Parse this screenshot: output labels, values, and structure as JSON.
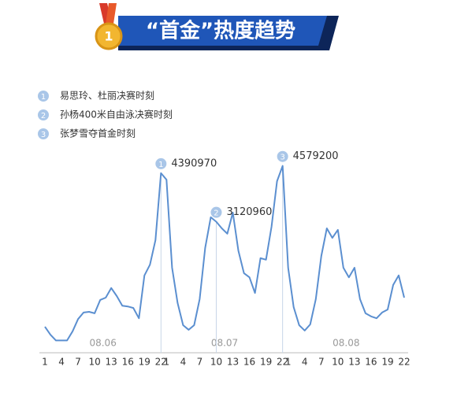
{
  "chart_data": {
    "type": "line",
    "title": "“首金”热度趋势",
    "categories": [
      "1",
      null,
      null,
      "4",
      null,
      null,
      "7",
      null,
      null,
      "10",
      null,
      null,
      "13",
      null,
      null,
      "16",
      null,
      null,
      "19",
      null,
      null,
      "22",
      "1",
      null,
      null,
      "4",
      null,
      null,
      "7",
      null,
      null,
      "10",
      null,
      null,
      "13",
      null,
      null,
      "16",
      null,
      null,
      "19",
      null,
      null,
      "22",
      "1",
      null,
      null,
      "4",
      null,
      null,
      "7",
      null,
      null,
      "10",
      null,
      null,
      "13",
      null,
      null,
      "16",
      null,
      null,
      "19",
      null,
      null,
      "22"
    ],
    "groups": [
      "08.06",
      "08.07",
      "08.08"
    ],
    "values": [
      380000,
      170000,
      20000,
      20000,
      20000,
      260000,
      580000,
      750000,
      770000,
      730000,
      1080000,
      1140000,
      1390000,
      1180000,
      930000,
      910000,
      870000,
      600000,
      1720000,
      2000000,
      2640000,
      4390970,
      4220000,
      1920000,
      1000000,
      420000,
      300000,
      420000,
      1100000,
      2440000,
      3240000,
      3120960,
      2950000,
      2810000,
      3360000,
      2370000,
      1780000,
      1670000,
      1260000,
      2170000,
      2130000,
      2990000,
      4180000,
      4579200,
      1920000,
      890000,
      420000,
      280000,
      440000,
      1100000,
      2230000,
      2950000,
      2700000,
      2910000,
      1920000,
      1670000,
      1920000,
      1100000,
      730000,
      650000,
      600000,
      750000,
      830000,
      1470000,
      1720000,
      1140000
    ],
    "color": "#5b8fd0",
    "ylim": [
      -300000,
      4800000
    ],
    "annotations": [
      {
        "marker": "1",
        "text": "易思玲、杜丽决赛时刻",
        "value": 4390970
      },
      {
        "marker": "2",
        "text": "孙杨400米自由泳决赛时刻",
        "value": 3120960
      },
      {
        "marker": "3",
        "text": "张梦雪夺首金时刻",
        "value": 4579200
      }
    ]
  }
}
